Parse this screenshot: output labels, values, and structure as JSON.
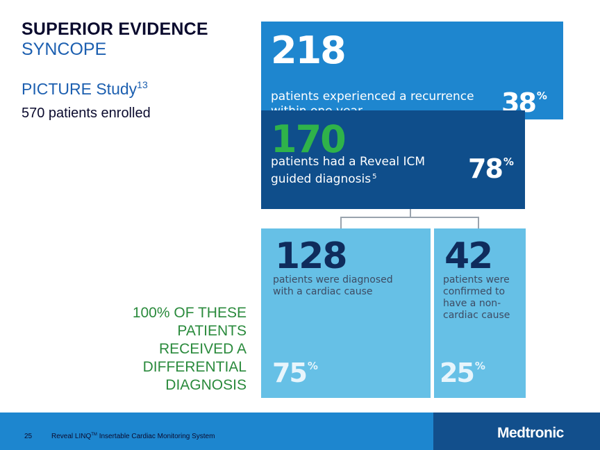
{
  "header": {
    "title": "SUPERIOR EVIDENCE",
    "subtitle": "SYNCOPE",
    "study": "PICTURE Study",
    "study_ref": "13",
    "enrolled": "570 patients enrolled"
  },
  "callout": "100% OF THESE PATIENTS RECEIVED A DIFFERENTIAL DIAGNOSIS",
  "stats": {
    "recurrence": {
      "count": "218",
      "text": "patients experienced a recurrence within one year",
      "percent": "38",
      "percent_sign": "%"
    },
    "diagnosis": {
      "count": "170",
      "text": "patients had a Reveal ICM guided diagnosis",
      "text_ref": "5",
      "percent": "78",
      "percent_sign": "%"
    },
    "cardiac": {
      "count": "128",
      "text": "patients were diagnosed with a cardiac cause",
      "percent": "75",
      "percent_sign": "%"
    },
    "non_cardiac": {
      "count": "42",
      "text": "patients were confirmed to have a non-cardiac cause",
      "percent": "25",
      "percent_sign": "%"
    }
  },
  "footer": {
    "page_number": "25",
    "product": "Reveal LINQ",
    "product_mark": "TM",
    "product_rest": " Insertable Cardiac Monitoring System",
    "logo": "Medtronic"
  },
  "colors": {
    "box_218": "#1e86cf",
    "box_170": "#0f4e8b",
    "box_split": "#66c0e6",
    "accent_green": "#2fb34a",
    "footer": "#1d86cf"
  }
}
